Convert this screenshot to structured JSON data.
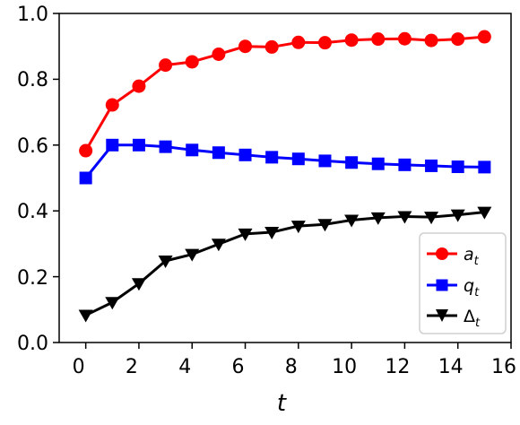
{
  "chart_data": {
    "type": "line",
    "title": "",
    "xlabel": "t",
    "ylabel": "",
    "xlim": [
      -1,
      16
    ],
    "ylim": [
      0.0,
      1.0
    ],
    "xticks": [
      0,
      2,
      4,
      6,
      8,
      10,
      12,
      14,
      16
    ],
    "xtick_labels": [
      "0",
      "2",
      "4",
      "6",
      "8",
      "10",
      "12",
      "14",
      "16"
    ],
    "yticks": [
      0.0,
      0.2,
      0.4,
      0.6,
      0.8,
      1.0
    ],
    "ytick_labels": [
      "0.0",
      "0.2",
      "0.4",
      "0.6",
      "0.8",
      "1.0"
    ],
    "grid": false,
    "legend_position": "lower-right",
    "x": [
      0,
      1,
      2,
      3,
      4,
      5,
      6,
      7,
      8,
      9,
      10,
      11,
      12,
      13,
      14,
      15
    ],
    "series": [
      {
        "id": "a",
        "label_main": "a",
        "label_sub": "t",
        "color": "#ff0000",
        "marker": "circle",
        "values": [
          0.583,
          0.722,
          0.779,
          0.843,
          0.853,
          0.876,
          0.9,
          0.898,
          0.912,
          0.911,
          0.919,
          0.922,
          0.923,
          0.918,
          0.922,
          0.929
        ]
      },
      {
        "id": "q",
        "label_main": "q",
        "label_sub": "t",
        "color": "#0000ff",
        "marker": "square",
        "values": [
          0.5,
          0.6,
          0.6,
          0.595,
          0.585,
          0.577,
          0.57,
          0.563,
          0.558,
          0.552,
          0.547,
          0.543,
          0.54,
          0.537,
          0.534,
          0.533
        ]
      },
      {
        "id": "delta",
        "label_main": "Δ",
        "label_sub": "t",
        "color": "#000000",
        "marker": "triangle-down",
        "values": [
          0.083,
          0.122,
          0.179,
          0.248,
          0.268,
          0.299,
          0.33,
          0.335,
          0.354,
          0.359,
          0.372,
          0.379,
          0.383,
          0.381,
          0.388,
          0.396
        ]
      }
    ]
  }
}
